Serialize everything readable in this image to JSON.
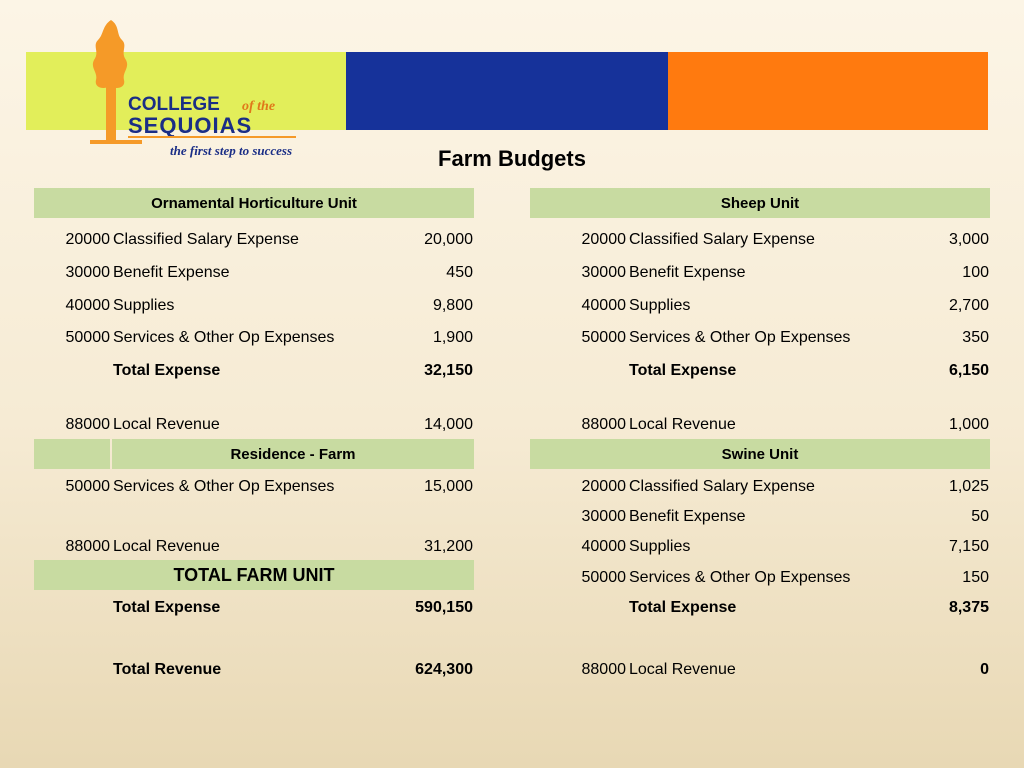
{
  "brand": {
    "name_line1": "COLLEGE",
    "name_of_the": "of the",
    "name_line2": "SEQUOIAS",
    "tagline": "the first step to success"
  },
  "page": {
    "title": "Farm Budgets"
  },
  "colors": {
    "banner_lime": "#e2ee5a",
    "banner_blue": "#16329a",
    "banner_orange": "#ff7a0f",
    "header_fill": "#c8dba1"
  },
  "left": {
    "ornamental": {
      "header": "Ornamental Horticulture Unit",
      "rows": [
        {
          "code": "20000",
          "desc": "Classified Salary Expense",
          "amt": "20,000"
        },
        {
          "code": "30000",
          "desc": "Benefit Expense",
          "amt": "450"
        },
        {
          "code": "40000",
          "desc": "Supplies",
          "amt": "9,800"
        },
        {
          "code": "50000",
          "desc": "Services & Other Op Expenses",
          "amt": "1,900"
        }
      ],
      "total_label": "Total Expense",
      "total_amt": "32,150",
      "revenue": {
        "code": "88000",
        "desc": "Local Revenue",
        "amt": "14,000"
      }
    },
    "residence": {
      "header": "Residence - Farm",
      "rows": [
        {
          "code": "50000",
          "desc": "Services & Other Op Expenses",
          "amt": "15,000"
        }
      ],
      "revenue": {
        "code": "88000",
        "desc": "Local Revenue",
        "amt": "31,200"
      }
    },
    "total_farm": {
      "header": "TOTAL FARM UNIT",
      "expense_label": "Total Expense",
      "expense_amt": "590,150",
      "revenue_label": "Total Revenue",
      "revenue_amt": "624,300"
    }
  },
  "right": {
    "sheep": {
      "header": "Sheep Unit",
      "rows": [
        {
          "code": "20000",
          "desc": "Classified Salary Expense",
          "amt": "3,000"
        },
        {
          "code": "30000",
          "desc": "Benefit Expense",
          "amt": "100"
        },
        {
          "code": "40000",
          "desc": "Supplies",
          "amt": "2,700"
        },
        {
          "code": "50000",
          "desc": "Services & Other Op Expenses",
          "amt": "350"
        }
      ],
      "total_label": "Total Expense",
      "total_amt": "6,150",
      "revenue": {
        "code": "88000",
        "desc": "Local Revenue",
        "amt": "1,000"
      }
    },
    "swine": {
      "header": "Swine Unit",
      "rows": [
        {
          "code": "20000",
          "desc": "Classified Salary Expense",
          "amt": "1,025"
        },
        {
          "code": "30000",
          "desc": "Benefit Expense",
          "amt": "50"
        },
        {
          "code": "40000",
          "desc": "Supplies",
          "amt": "7,150"
        },
        {
          "code": "50000",
          "desc": "Services & Other Op Expenses",
          "amt": "150"
        }
      ],
      "total_label": "Total Expense",
      "total_amt": "8,375",
      "revenue": {
        "code": "88000",
        "desc": "Local Revenue",
        "amt": "0"
      }
    }
  }
}
